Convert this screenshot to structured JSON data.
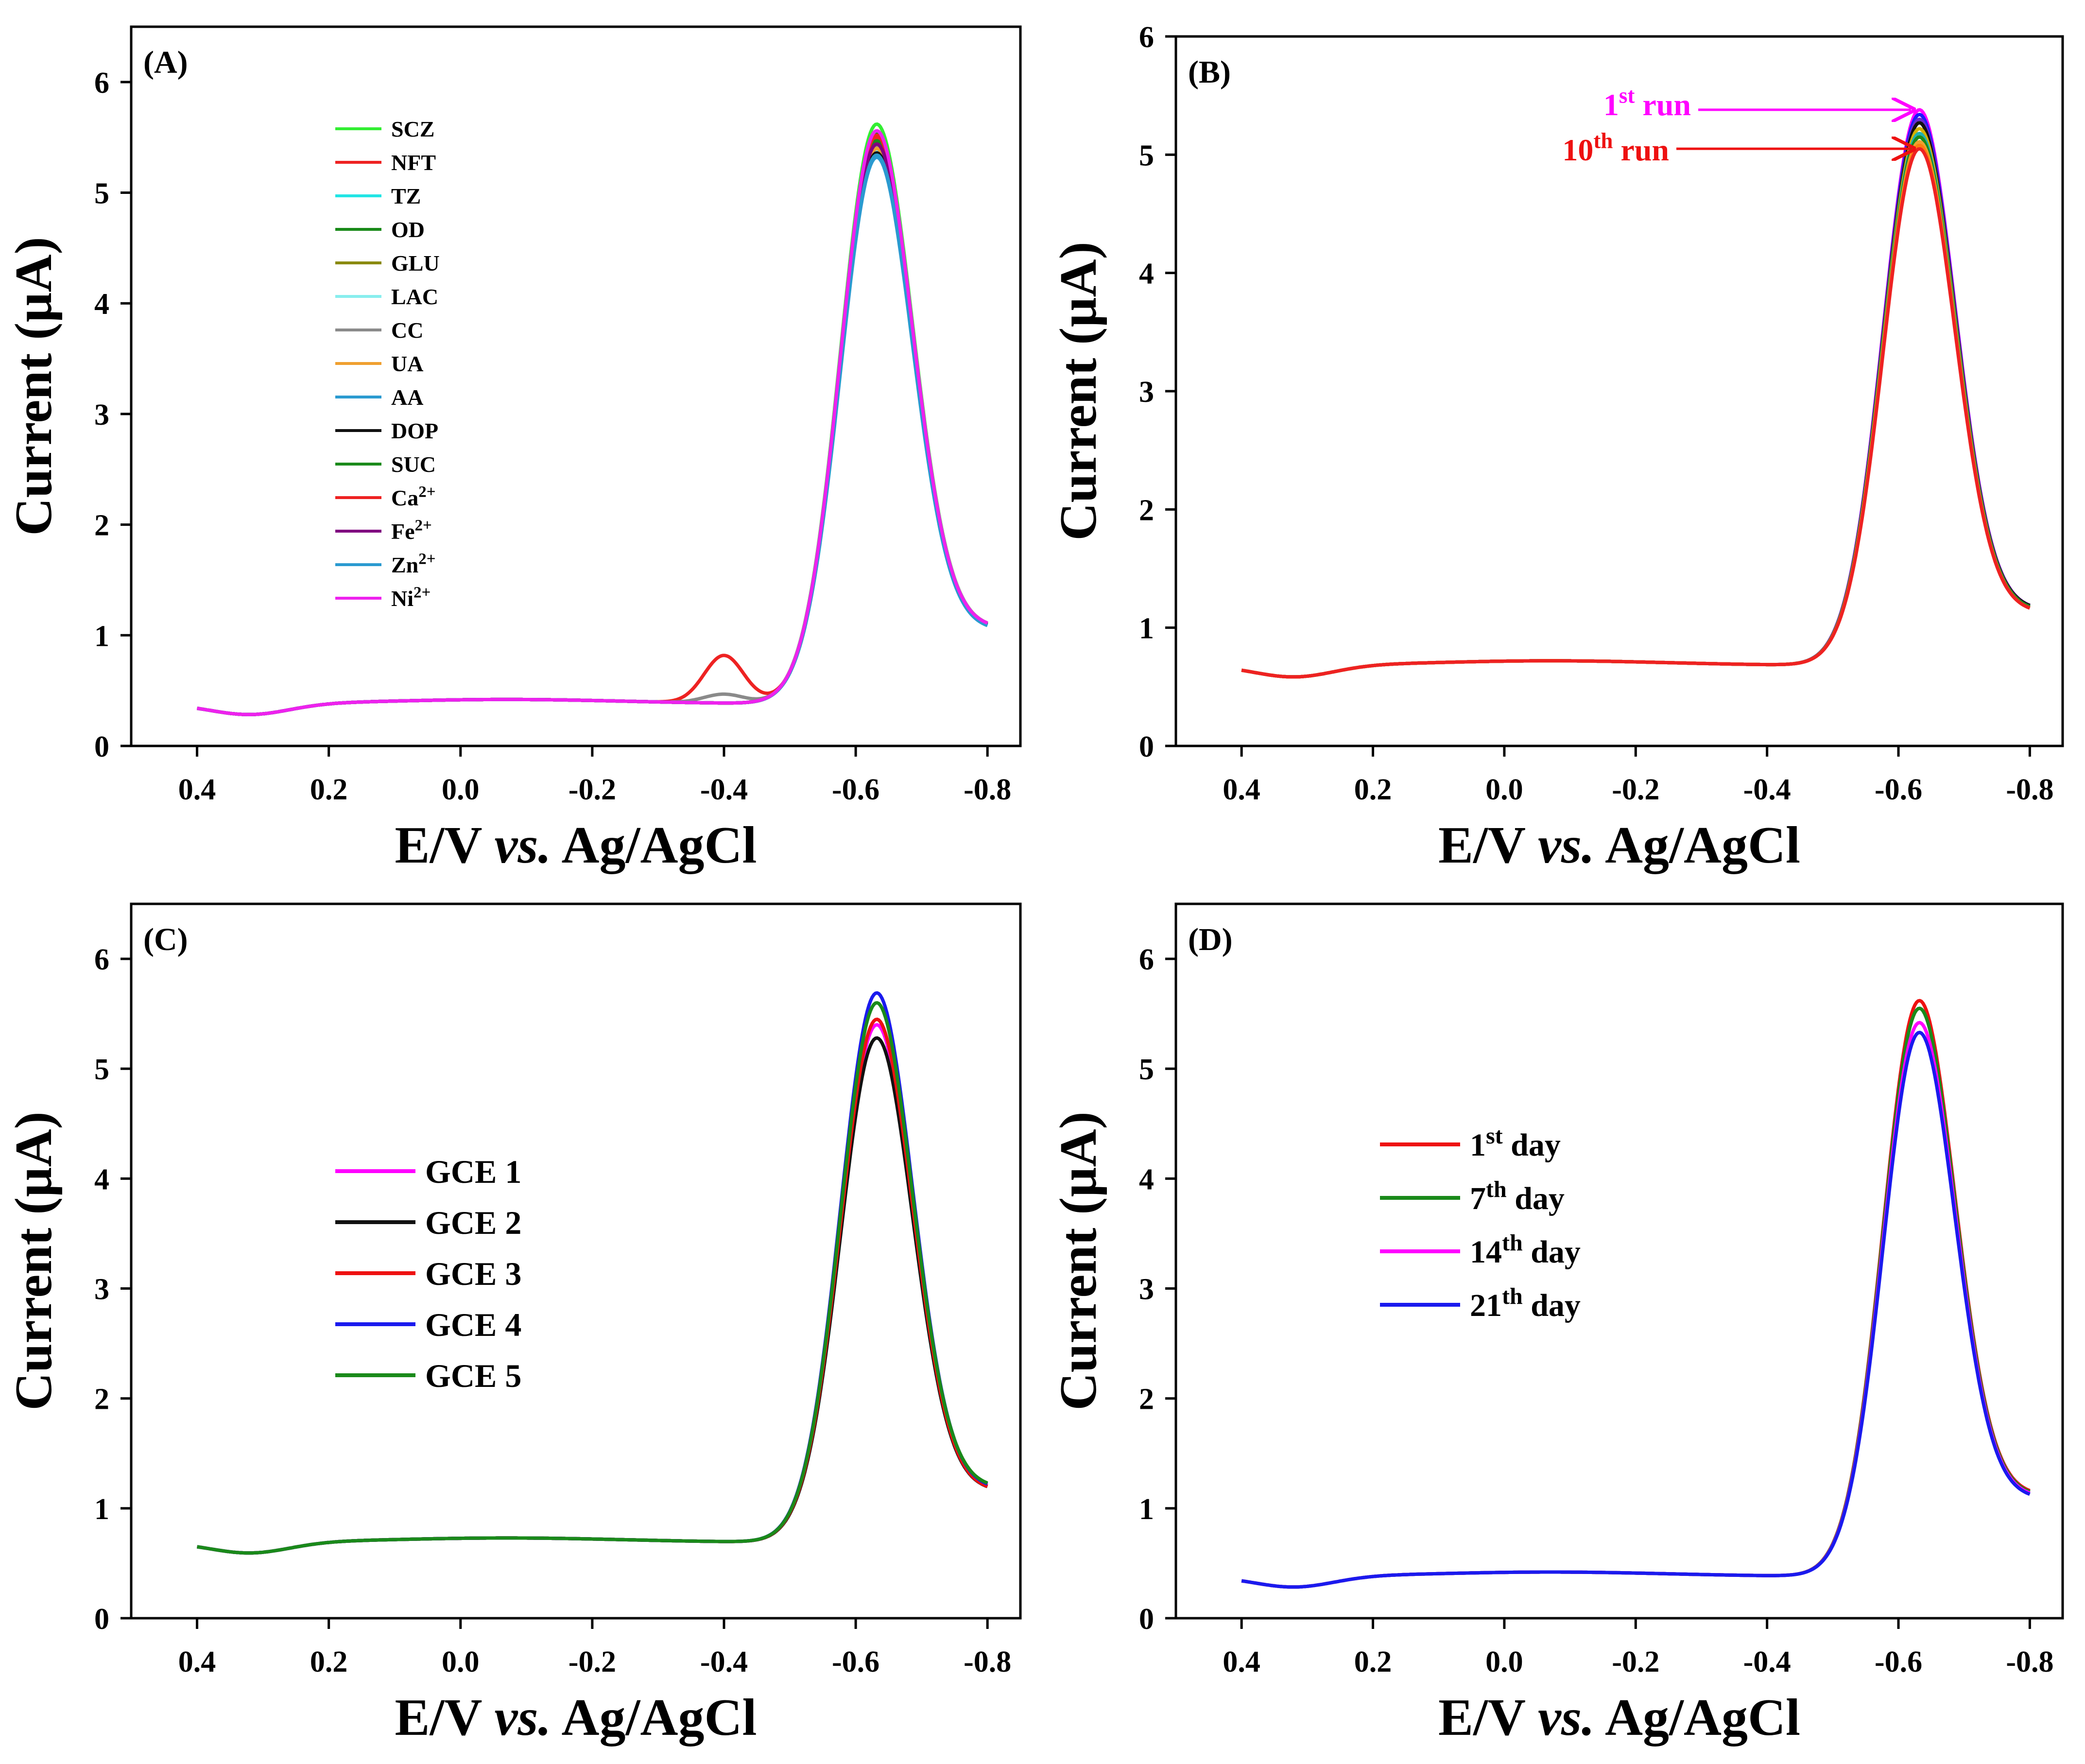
{
  "x_axis_label": {
    "main": "E/V ",
    "italic": "vs.",
    "rest": " Ag/AgCl"
  },
  "y_axis_label": "Current (µA)",
  "chart_data": [
    {
      "id": "A",
      "panel_label": "(A)",
      "type": "line",
      "xlim": [
        0.5,
        -0.85
      ],
      "ylim": [
        0,
        6.5
      ],
      "xticks": [
        0.4,
        0.2,
        0.0,
        -0.2,
        -0.4,
        -0.6,
        -0.8
      ],
      "xtick_labels": [
        "0.4",
        "0.2",
        "0.0",
        "-0.2",
        "-0.4",
        "-0.6",
        "-0.8"
      ],
      "yticks": [
        0,
        1,
        2,
        3,
        4,
        5,
        6
      ],
      "ytick_labels": [
        "0",
        "1",
        "2",
        "3",
        "4",
        "5",
        "6"
      ],
      "legend_placement": "upper-left",
      "series": [
        {
          "name": "SCZ",
          "sup": "",
          "color": "#33ee33",
          "peak": 5.62,
          "base": 0.42,
          "tail": 1.07
        },
        {
          "name": "NFT",
          "sup": "",
          "color": "#ee2222",
          "peak": 5.5,
          "base": 0.42,
          "tail": 1.07,
          "extra_peak": {
            "x": -0.4,
            "height": 0.85
          }
        },
        {
          "name": "TZ",
          "sup": "",
          "color": "#22e5e5",
          "peak": 5.4,
          "base": 0.42,
          "tail": 1.06
        },
        {
          "name": "OD",
          "sup": "",
          "color": "#1a8a1a",
          "peak": 5.55,
          "base": 0.42,
          "tail": 1.06
        },
        {
          "name": "GLU",
          "sup": "",
          "color": "#8a8a10",
          "peak": 5.45,
          "base": 0.42,
          "tail": 1.06
        },
        {
          "name": "LAC",
          "sup": "",
          "color": "#88eeee",
          "peak": 5.38,
          "base": 0.42,
          "tail": 1.06
        },
        {
          "name": "CC",
          "sup": "",
          "color": "#8a8a8a",
          "peak": 5.42,
          "base": 0.42,
          "tail": 1.06,
          "extra_peak": {
            "x": -0.4,
            "height": 0.5
          }
        },
        {
          "name": "UA",
          "sup": "",
          "color": "#f0a030",
          "peak": 5.4,
          "base": 0.42,
          "tail": 1.06
        },
        {
          "name": "AA",
          "sup": "",
          "color": "#2a9ad0",
          "peak": 5.32,
          "base": 0.42,
          "tail": 1.05
        },
        {
          "name": "DOP",
          "sup": "",
          "color": "#111111",
          "peak": 5.36,
          "base": 0.42,
          "tail": 1.06
        },
        {
          "name": "SUC",
          "sup": "",
          "color": "#1a8a1a",
          "peak": 5.47,
          "base": 0.42,
          "tail": 1.06
        },
        {
          "name": "Ca",
          "sup": "2+",
          "color": "#ee2222",
          "peak": 5.52,
          "base": 0.42,
          "tail": 1.07
        },
        {
          "name": "Fe",
          "sup": "2+",
          "color": "#800080",
          "peak": 5.44,
          "base": 0.42,
          "tail": 1.06
        },
        {
          "name": "Zn",
          "sup": "2+",
          "color": "#2a9ad0",
          "peak": 5.34,
          "base": 0.42,
          "tail": 1.05
        },
        {
          "name": "Ni",
          "sup": "2+",
          "color": "#ee22ee",
          "peak": 5.56,
          "base": 0.42,
          "tail": 1.07
        }
      ]
    },
    {
      "id": "B",
      "panel_label": "(B)",
      "type": "line",
      "xlim": [
        0.5,
        -0.85
      ],
      "ylim": [
        0,
        6
      ],
      "xticks": [
        0.4,
        0.2,
        0.0,
        -0.2,
        -0.4,
        -0.6,
        -0.8
      ],
      "xtick_labels": [
        "0.4",
        "0.2",
        "0.0",
        "-0.2",
        "-0.4",
        "-0.6",
        "-0.8"
      ],
      "yticks": [
        0,
        1,
        2,
        3,
        4,
        5,
        6
      ],
      "ytick_labels": [
        "0",
        "1",
        "2",
        "3",
        "4",
        "5",
        "6"
      ],
      "series": [
        {
          "color": "#ff00ff",
          "peak": 5.38,
          "base": 0.72,
          "tail": 1.15
        },
        {
          "color": "#1a1aff",
          "peak": 5.34,
          "base": 0.72,
          "tail": 1.15
        },
        {
          "color": "#6a2ad0",
          "peak": 5.3,
          "base": 0.72,
          "tail": 1.15
        },
        {
          "color": "#111111",
          "peak": 5.27,
          "base": 0.72,
          "tail": 1.15
        },
        {
          "color": "#d4b000",
          "peak": 5.22,
          "base": 0.72,
          "tail": 1.14
        },
        {
          "color": "#20b0b0",
          "peak": 5.18,
          "base": 0.72,
          "tail": 1.14
        },
        {
          "color": "#1a8a1a",
          "peak": 5.15,
          "base": 0.72,
          "tail": 1.14
        },
        {
          "color": "#f0a030",
          "peak": 5.11,
          "base": 0.72,
          "tail": 1.13
        },
        {
          "color": "#ff7f0e",
          "peak": 5.08,
          "base": 0.72,
          "tail": 1.13
        },
        {
          "color": "#ee2222",
          "peak": 5.05,
          "base": 0.72,
          "tail": 1.13
        }
      ],
      "annotations": [
        {
          "main": "1",
          "sup": "st",
          "tail": " run",
          "color": "#ff00ff",
          "target_x": -0.625,
          "target_y": 5.38
        },
        {
          "main": "10",
          "sup": "th",
          "tail": " run",
          "color": "#ee1111",
          "target_x": -0.625,
          "target_y": 5.05
        }
      ]
    },
    {
      "id": "C",
      "panel_label": "(C)",
      "type": "line",
      "xlim": [
        0.5,
        -0.85
      ],
      "ylim": [
        0,
        6.5
      ],
      "xticks": [
        0.4,
        0.2,
        0.0,
        -0.2,
        -0.4,
        -0.6,
        -0.8
      ],
      "xtick_labels": [
        "0.4",
        "0.2",
        "0.0",
        "-0.2",
        "-0.4",
        "-0.6",
        "-0.8"
      ],
      "yticks": [
        0,
        1,
        2,
        3,
        4,
        5,
        6
      ],
      "ytick_labels": [
        "0",
        "1",
        "2",
        "3",
        "4",
        "5",
        "6"
      ],
      "legend_placement": "center-left",
      "series": [
        {
          "name": "GCE 1",
          "sup": "",
          "color": "#ff00ff",
          "peak": 5.4,
          "base": 0.73,
          "tail": 1.17
        },
        {
          "name": "GCE 2",
          "sup": "",
          "color": "#111111",
          "peak": 5.28,
          "base": 0.73,
          "tail": 1.16
        },
        {
          "name": "GCE 3",
          "sup": "",
          "color": "#ee1111",
          "peak": 5.45,
          "base": 0.73,
          "tail": 1.16
        },
        {
          "name": "GCE 4",
          "sup": "",
          "color": "#1a1aee",
          "peak": 5.69,
          "base": 0.73,
          "tail": 1.18
        },
        {
          "name": "GCE 5",
          "sup": "",
          "color": "#1a8a1a",
          "peak": 5.6,
          "base": 0.73,
          "tail": 1.19
        }
      ]
    },
    {
      "id": "D",
      "panel_label": "(D)",
      "type": "line",
      "xlim": [
        0.5,
        -0.85
      ],
      "ylim": [
        0,
        6.5
      ],
      "xticks": [
        0.4,
        0.2,
        0.0,
        -0.2,
        -0.4,
        -0.6,
        -0.8
      ],
      "xtick_labels": [
        "0.4",
        "0.2",
        "0.0",
        "-0.2",
        "-0.4",
        "-0.6",
        "-0.8"
      ],
      "yticks": [
        0,
        1,
        2,
        3,
        4,
        5,
        6
      ],
      "ytick_labels": [
        "0",
        "1",
        "2",
        "3",
        "4",
        "5",
        "6"
      ],
      "legend_placement": "center-left",
      "series": [
        {
          "name": "1",
          "sup": "st",
          "suffix": " day",
          "color": "#ee1111",
          "peak": 5.62,
          "base": 0.42,
          "tail": 1.12
        },
        {
          "name": "7",
          "sup": "th",
          "suffix": " day",
          "color": "#1a8a1a",
          "peak": 5.55,
          "base": 0.42,
          "tail": 1.11
        },
        {
          "name": "14",
          "sup": "th",
          "suffix": " day",
          "color": "#ff00ff",
          "peak": 5.42,
          "base": 0.42,
          "tail": 1.1
        },
        {
          "name": "21",
          "sup": "th",
          "suffix": " day",
          "color": "#1a1aee",
          "peak": 5.33,
          "base": 0.42,
          "tail": 1.09
        }
      ]
    }
  ]
}
